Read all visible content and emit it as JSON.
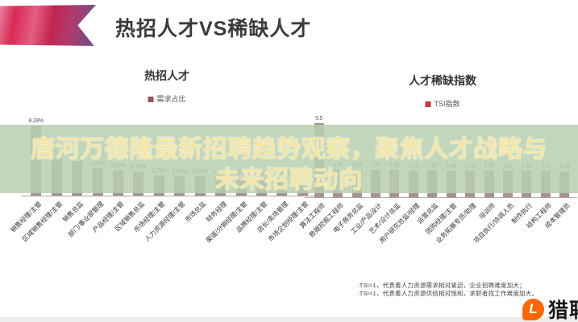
{
  "header": {
    "title": "热招人才VS稀缺人才"
  },
  "overlay": {
    "line1": "唐河万德隆最新招聘趋势观察，聚焦人才战略与",
    "line2": "未来招聘动向",
    "text_color": "#f2e7a9",
    "band_color": "rgba(183,207,176,0.85)"
  },
  "chart_data": [
    {
      "type": "bar",
      "title": "热招人才",
      "legend": "需求占比",
      "legend_color": "#8e565e",
      "bar_color": "#a7938c",
      "ylabel": "需求占比",
      "ylim": [
        0,
        8.5
      ],
      "grid": false,
      "legend_position": "top",
      "categories": [
        "销售经理/主管",
        "区域销售经理/主管",
        "销售总监",
        "部门/事业部管理",
        "产品经理/主管",
        "区域销售总监",
        "市场经理/主管",
        "人力资源经理/主管",
        "市场总监",
        "财务经理",
        "渠道/分销经理/主管",
        "品牌经理/主管",
        "店长/卖场管理",
        "市场企划经理/主管"
      ],
      "values": [
        8.28,
        3.74,
        3.41,
        2.6,
        2.32,
        2.17,
        1.75,
        1.65,
        1.62,
        1.58,
        1.55,
        1.52,
        1.5,
        1.48
      ],
      "labels": [
        "8.28%",
        "3.74%",
        "3.41%",
        "2.60%",
        "2.32%",
        "2.17%",
        "1.75%",
        "1.65%",
        "1.62%",
        "1.58%",
        "1.55%",
        "1.52%",
        "1.50%",
        "1.48%"
      ]
    },
    {
      "type": "bar",
      "title": "人才稀缺指数",
      "legend": "TSI指数",
      "legend_color": "#c0393b",
      "bar_color": "#a7938c",
      "ylabel": "TSI指数",
      "ylim": [
        0,
        5.6
      ],
      "grid": false,
      "legend_position": "top",
      "categories": [
        "算法工程师",
        "数据挖掘工程师",
        "电子商务总监",
        "工业/产品设计",
        "艺术/设计总监",
        "用户研究总监/经理",
        "运营总监",
        "团购经理/主管",
        "业务拓展专员/助理",
        "培训师",
        "项目执行/协调人员",
        "制作执行",
        "结构工程师",
        "成本管理员"
      ],
      "values": [
        5.5,
        1.6,
        1.58,
        1.58,
        1.56,
        1.55,
        1.55,
        1.54,
        1.53,
        1.52,
        1.52,
        1.51,
        1.5,
        1.49
      ],
      "labels": [
        "5.5",
        "1.6",
        "1.58",
        "1.58",
        "1.56",
        "1.55",
        "1.55",
        "1.54",
        "1.53",
        "1.52",
        "1.52",
        "1.51",
        "1.5",
        "1.49"
      ]
    }
  ],
  "footnote": {
    "line1": "·TSI>1，代表着人力资源需求相对紧迫，企业招聘难度加大；",
    "line2": "·TSI<1，代表着人力资源供给相对饱和，求职者找工作难度加大。"
  },
  "logo": {
    "text": "猎聘",
    "mark": "L",
    "color": "#ff6600"
  }
}
